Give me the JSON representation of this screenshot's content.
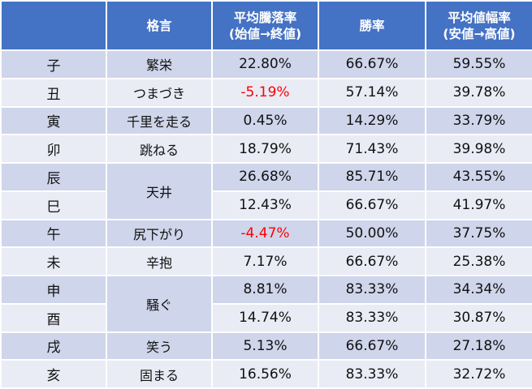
{
  "table": {
    "headers": [
      "",
      "格言",
      "平均騰落率\n(始値→終値)",
      "勝率",
      "平均値幅率\n(安値→高値)"
    ],
    "header_lines": {
      "col1": "格言",
      "col2_line1": "平均騰落率",
      "col2_line2": "(始値→終値)",
      "col3": "勝率",
      "col4_line1": "平均値幅率",
      "col4_line2": "(安値→高値)"
    },
    "rows": [
      {
        "zodiac": "子",
        "kakugen": "繁栄",
        "change": "22.80%",
        "win_rate": "66.67%",
        "range": "59.55%"
      },
      {
        "zodiac": "丑",
        "kakugen": "つまづき",
        "change": "-5.19%",
        "win_rate": "57.14%",
        "range": "39.78%"
      },
      {
        "zodiac": "寅",
        "kakugen": "千里を走る",
        "change": "0.45%",
        "win_rate": "14.29%",
        "range": "33.79%"
      },
      {
        "zodiac": "卯",
        "kakugen": "跳ねる",
        "change": "18.79%",
        "win_rate": "71.43%",
        "range": "39.98%"
      },
      {
        "zodiac": "辰",
        "kakugen": "天井",
        "change": "26.68%",
        "win_rate": "85.71%",
        "range": "43.55%"
      },
      {
        "zodiac": "巳",
        "kakugen": "",
        "change": "12.43%",
        "win_rate": "66.67%",
        "range": "41.97%"
      },
      {
        "zodiac": "午",
        "kakugen": "尻下がり",
        "change": "-4.47%",
        "win_rate": "50.00%",
        "range": "37.75%"
      },
      {
        "zodiac": "未",
        "kakugen": "辛抱",
        "change": "7.17%",
        "win_rate": "66.67%",
        "range": "25.38%"
      },
      {
        "zodiac": "申",
        "kakugen": "騒ぐ",
        "change": "8.81%",
        "win_rate": "83.33%",
        "range": "34.34%"
      },
      {
        "zodiac": "酉",
        "kakugen": "",
        "change": "14.74%",
        "win_rate": "83.33%",
        "range": "30.87%"
      },
      {
        "zodiac": "戌",
        "kakugen": "笑う",
        "change": "5.13%",
        "win_rate": "66.67%",
        "range": "27.18%"
      },
      {
        "zodiac": "亥",
        "kakugen": "固まる",
        "change": "16.56%",
        "win_rate": "83.33%",
        "range": "32.72%"
      }
    ]
  },
  "colors": {
    "header_bg": "#4472c4",
    "header_text": "#ffffff",
    "row_odd_bg": "#cfd5ea",
    "row_even_bg": "#e9ebf5",
    "negative_text": "#ff0000"
  }
}
